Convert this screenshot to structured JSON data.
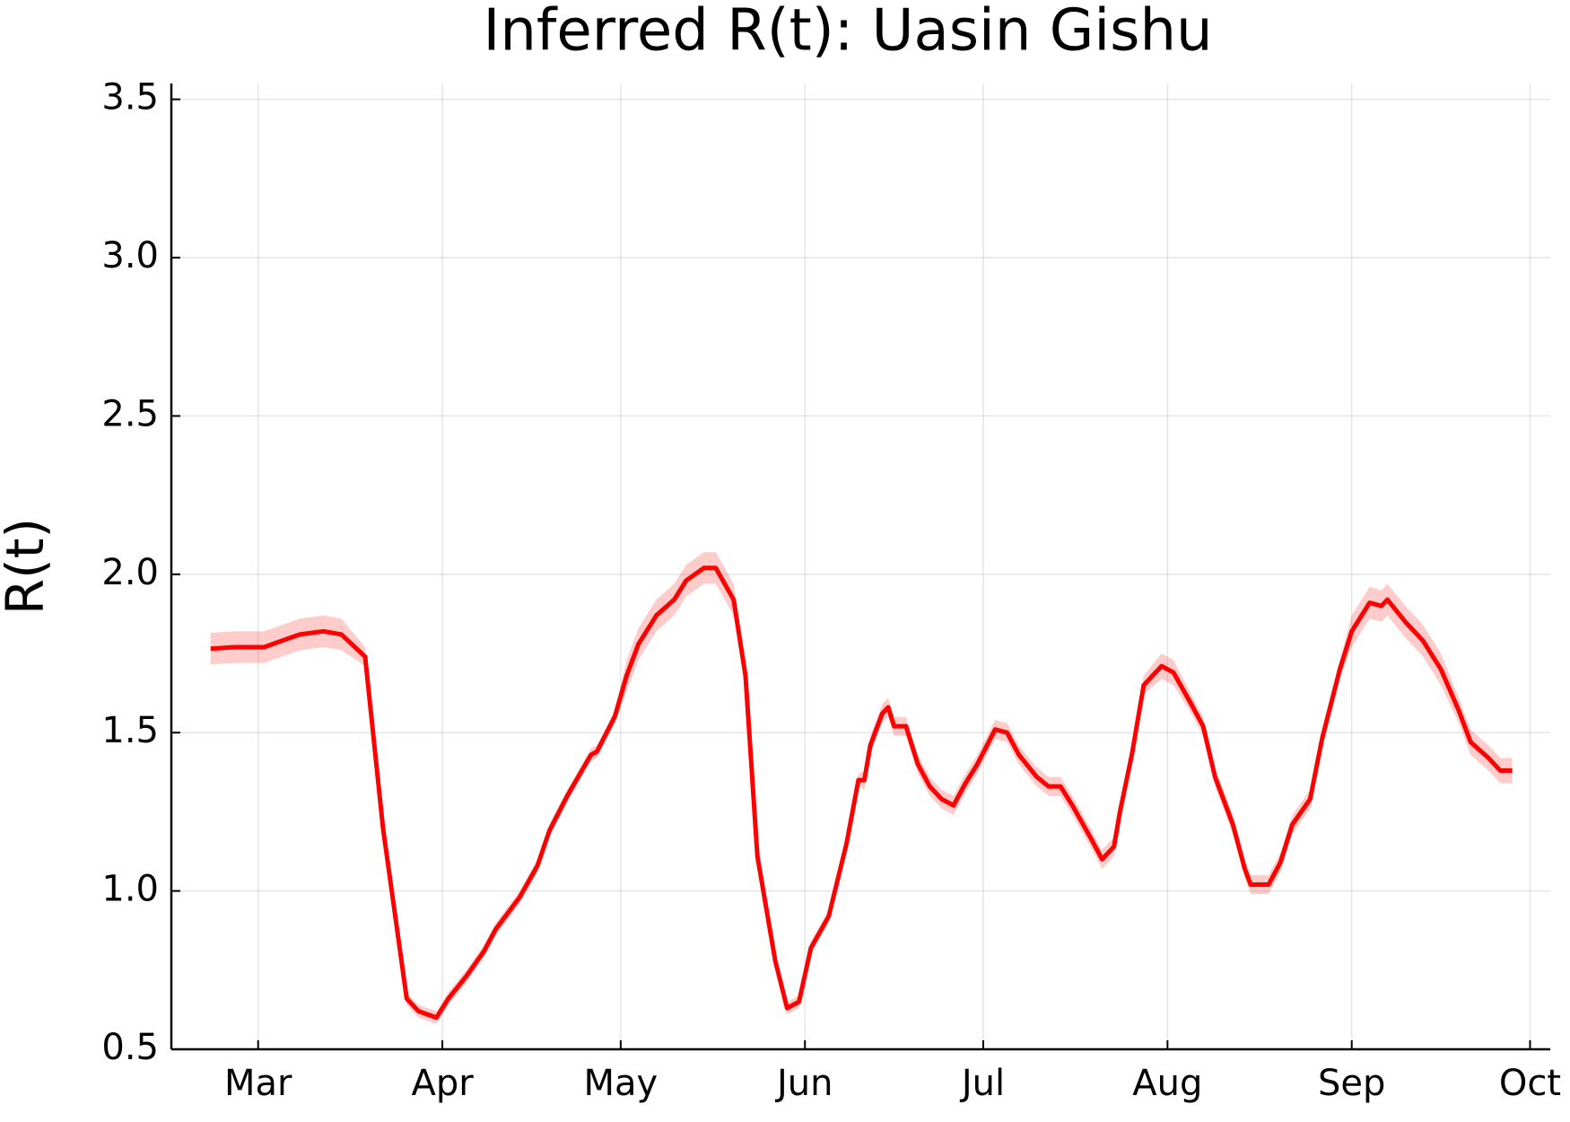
{
  "chart_data": {
    "type": "line",
    "title": "Inferred R(t): Uasin Gishu",
    "ylabel": "R(t)",
    "x": [
      -8,
      -4,
      1,
      4,
      7,
      11,
      14,
      18,
      21,
      25,
      27,
      30,
      32,
      35,
      38,
      40,
      44,
      47,
      49,
      52,
      56,
      57,
      60,
      62,
      64,
      67,
      70,
      72,
      75,
      77,
      80,
      82,
      84,
      87,
      89,
      91,
      93,
      96,
      99,
      101,
      102,
      103,
      105,
      106,
      107,
      109,
      111,
      113,
      115,
      117,
      119,
      121,
      124,
      126,
      128,
      131,
      133,
      135,
      137,
      140,
      142,
      144,
      145,
      147,
      149,
      152,
      154,
      157,
      159,
      161,
      164,
      166,
      167,
      170,
      172,
      174,
      177,
      179,
      182,
      184,
      187,
      189,
      190,
      193,
      196,
      199,
      202,
      204,
      207,
      209,
      211
    ],
    "xlim": [
      -14.6,
      217.4
    ],
    "xticks": [
      {
        "value": 0,
        "label": "Mar"
      },
      {
        "value": 31,
        "label": "Apr"
      },
      {
        "value": 61,
        "label": "May"
      },
      {
        "value": 92,
        "label": "Jun"
      },
      {
        "value": 122,
        "label": "Jul"
      },
      {
        "value": 153,
        "label": "Aug"
      },
      {
        "value": 184,
        "label": "Sep"
      },
      {
        "value": 214,
        "label": "Oct"
      }
    ],
    "ylim": [
      0.5,
      3.55
    ],
    "yticks": [
      0.5,
      {
        "value": 1,
        "label": "1.0"
      },
      1.5,
      {
        "value": 2,
        "label": "2.0"
      },
      2.5,
      {
        "value": 3,
        "label": "3.0"
      },
      3.5
    ],
    "grid": true,
    "series": [
      {
        "color": "#ff0000",
        "values": [
          1.765,
          1.77,
          1.77,
          1.79,
          1.81,
          1.82,
          1.81,
          1.74,
          1.2,
          0.66,
          0.62,
          0.6,
          0.66,
          0.73,
          0.81,
          0.88,
          0.98,
          1.08,
          1.19,
          1.3,
          1.43,
          1.44,
          1.55,
          1.68,
          1.78,
          1.87,
          1.92,
          1.98,
          2.02,
          2.02,
          1.92,
          1.68,
          1.11,
          0.78,
          0.63,
          0.65,
          0.82,
          0.92,
          1.15,
          1.35,
          1.35,
          1.46,
          1.56,
          1.58,
          1.52,
          1.52,
          1.4,
          1.33,
          1.29,
          1.27,
          1.34,
          1.4,
          1.51,
          1.5,
          1.43,
          1.36,
          1.33,
          1.33,
          1.27,
          1.17,
          1.1,
          1.14,
          1.25,
          1.43,
          1.65,
          1.71,
          1.69,
          1.59,
          1.52,
          1.36,
          1.21,
          1.07,
          1.02,
          1.02,
          1.09,
          1.21,
          1.29,
          1.48,
          1.7,
          1.82,
          1.91,
          1.9,
          1.92,
          1.85,
          1.79,
          1.7,
          1.57,
          1.47,
          1.42,
          1.38,
          1.38
        ]
      }
    ],
    "band": {
      "color": "#ff0000",
      "opacity": 0.2,
      "lower": [
        1.715,
        1.72,
        1.72,
        1.74,
        1.76,
        1.77,
        1.76,
        1.71,
        1.18,
        0.64,
        0.6,
        0.58,
        0.64,
        0.71,
        0.79,
        0.86,
        0.96,
        1.06,
        1.17,
        1.28,
        1.41,
        1.42,
        1.53,
        1.63,
        1.73,
        1.82,
        1.87,
        1.93,
        1.97,
        1.97,
        1.87,
        1.63,
        1.09,
        0.76,
        0.61,
        0.63,
        0.8,
        0.9,
        1.13,
        1.33,
        1.32,
        1.43,
        1.53,
        1.55,
        1.49,
        1.49,
        1.37,
        1.3,
        1.26,
        1.24,
        1.31,
        1.37,
        1.48,
        1.47,
        1.4,
        1.33,
        1.3,
        1.3,
        1.24,
        1.14,
        1.07,
        1.11,
        1.22,
        1.4,
        1.62,
        1.67,
        1.65,
        1.56,
        1.49,
        1.33,
        1.18,
        1.04,
        0.99,
        0.99,
        1.06,
        1.18,
        1.26,
        1.45,
        1.67,
        1.77,
        1.86,
        1.85,
        1.87,
        1.8,
        1.74,
        1.65,
        1.53,
        1.43,
        1.38,
        1.34,
        1.34
      ],
      "upper": [
        1.815,
        1.82,
        1.82,
        1.84,
        1.86,
        1.87,
        1.86,
        1.77,
        1.22,
        0.68,
        0.64,
        0.62,
        0.68,
        0.75,
        0.83,
        0.9,
        1.0,
        1.1,
        1.21,
        1.32,
        1.45,
        1.46,
        1.57,
        1.73,
        1.83,
        1.92,
        1.97,
        2.03,
        2.07,
        2.07,
        1.97,
        1.73,
        1.13,
        0.8,
        0.65,
        0.67,
        0.84,
        0.94,
        1.17,
        1.37,
        1.38,
        1.49,
        1.59,
        1.61,
        1.55,
        1.55,
        1.43,
        1.36,
        1.32,
        1.3,
        1.37,
        1.43,
        1.54,
        1.53,
        1.46,
        1.39,
        1.36,
        1.36,
        1.3,
        1.2,
        1.13,
        1.17,
        1.28,
        1.46,
        1.68,
        1.75,
        1.73,
        1.62,
        1.55,
        1.39,
        1.24,
        1.1,
        1.05,
        1.05,
        1.12,
        1.24,
        1.32,
        1.51,
        1.73,
        1.87,
        1.96,
        1.95,
        1.97,
        1.9,
        1.84,
        1.75,
        1.61,
        1.51,
        1.46,
        1.42,
        1.42
      ]
    }
  }
}
